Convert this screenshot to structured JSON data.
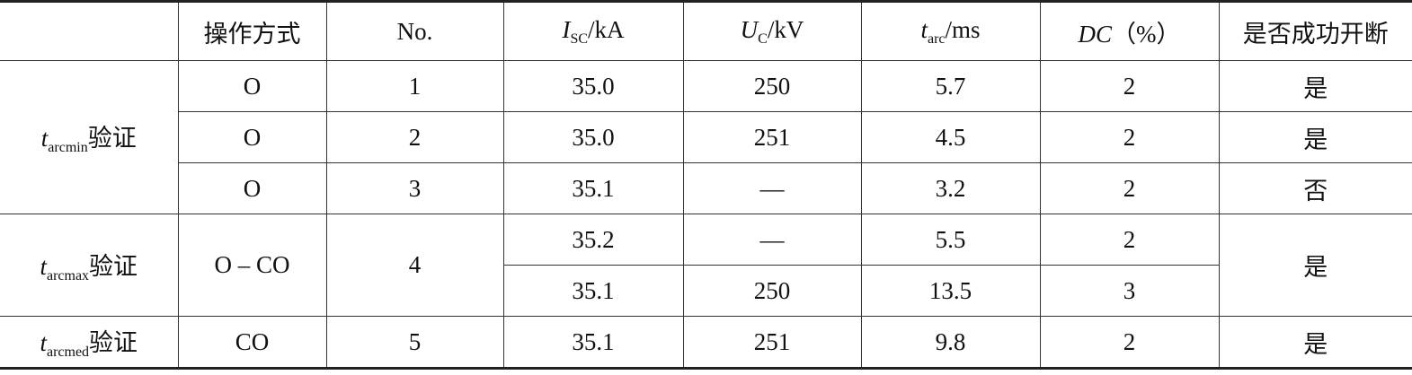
{
  "header": {
    "mode": "操作方式",
    "no": "No.",
    "isc": {
      "symbol": "I",
      "sub": "SC",
      "unit": "/kA"
    },
    "uc": {
      "symbol": "U",
      "sub": "C",
      "unit": "/kV"
    },
    "tarc": {
      "symbol": "t",
      "sub": "arc",
      "unit": "/ms"
    },
    "dc": {
      "symbol": "DC",
      "unit": "（%）"
    },
    "success": "是否成功开断"
  },
  "groups": [
    {
      "label": {
        "symbol": "t",
        "sub": "arcmin",
        "suffix": "验证"
      },
      "rows": [
        {
          "mode": "O",
          "no": "1",
          "isc": "35.0",
          "uc": "250",
          "tarc": "5.7",
          "dc": "2",
          "success": "是"
        },
        {
          "mode": "O",
          "no": "2",
          "isc": "35.0",
          "uc": "251",
          "tarc": "4.5",
          "dc": "2",
          "success": "是"
        },
        {
          "mode": "O",
          "no": "3",
          "isc": "35.1",
          "uc": "—",
          "tarc": "3.2",
          "dc": "2",
          "success": "否"
        }
      ]
    },
    {
      "label": {
        "symbol": "t",
        "sub": "arcmax",
        "suffix": "验证"
      },
      "mode": "O – CO",
      "no": "4",
      "success": "是",
      "rows": [
        {
          "isc": "35.2",
          "uc": "—",
          "tarc": "5.5",
          "dc": "2"
        },
        {
          "isc": "35.1",
          "uc": "250",
          "tarc": "13.5",
          "dc": "3"
        }
      ]
    },
    {
      "label": {
        "symbol": "t",
        "sub": "arcmed",
        "suffix": "验证"
      },
      "rows": [
        {
          "mode": "CO",
          "no": "5",
          "isc": "35.1",
          "uc": "251",
          "tarc": "9.8",
          "dc": "2",
          "success": "是"
        }
      ]
    }
  ]
}
